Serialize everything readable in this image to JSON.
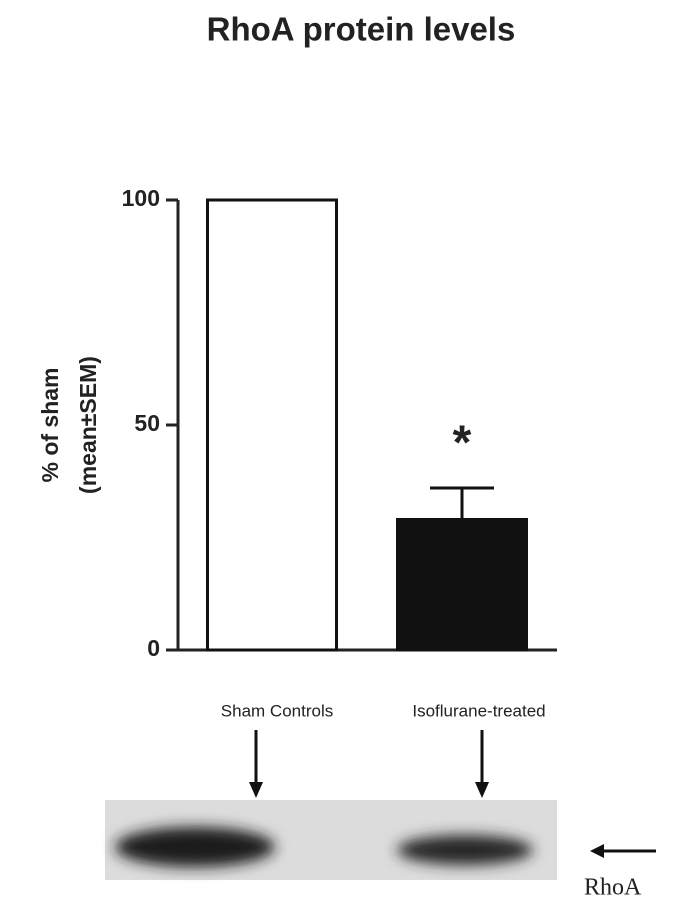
{
  "chart_data": {
    "type": "bar",
    "title": "RhoA protein levels",
    "y_label": [
      "% of sham",
      "(mean±SEM)"
    ],
    "categories": [
      "Sham Controls",
      "Isoflurane-treated"
    ],
    "values": [
      100,
      29
    ],
    "errors": [
      null,
      7
    ],
    "colors": [
      "#ffffff",
      "#111111"
    ],
    "annotations": [
      null,
      "*"
    ],
    "ylim": [
      0,
      100
    ],
    "yticks": [
      0,
      50,
      100
    ],
    "blot_label": "RhoA"
  }
}
